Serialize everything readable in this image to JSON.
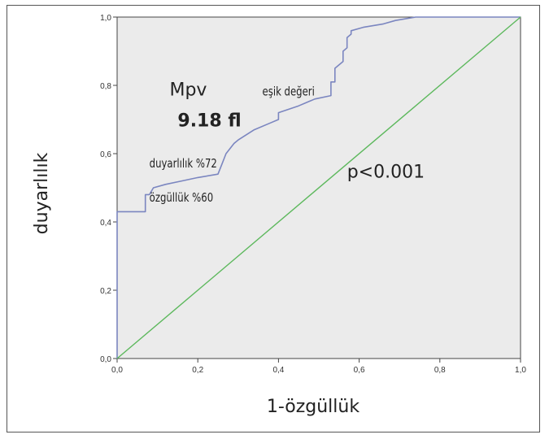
{
  "chart_data": {
    "type": "line",
    "xlabel": "1-özgüllük",
    "ylabel": "duyarlılık",
    "xlim": [
      0,
      1
    ],
    "ylim": [
      0,
      1
    ],
    "x_ticks": [
      "0,0",
      "0,2",
      "0,4",
      "0,6",
      "0,8",
      "1,0"
    ],
    "y_ticks": [
      "0,0",
      "0,2",
      "0,4",
      "0,6",
      "0,8",
      "1,0"
    ],
    "plot_background": "#ebebeb",
    "grid": false,
    "series": [
      {
        "color": "#7b86c0",
        "x": [
          0.0,
          0.0,
          0.07,
          0.07,
          0.08,
          0.09,
          0.12,
          0.16,
          0.2,
          0.25,
          0.26,
          0.27,
          0.29,
          0.3,
          0.34,
          0.38,
          0.4,
          0.4,
          0.45,
          0.49,
          0.53,
          0.53,
          0.54,
          0.54,
          0.56,
          0.56,
          0.57,
          0.57,
          0.58,
          0.58,
          0.61,
          0.61,
          0.66,
          0.66,
          0.69,
          0.69,
          0.74,
          0.8,
          1.0
        ],
        "y": [
          0.0,
          0.43,
          0.43,
          0.48,
          0.48,
          0.5,
          0.51,
          0.52,
          0.53,
          0.54,
          0.57,
          0.6,
          0.63,
          0.64,
          0.67,
          0.69,
          0.7,
          0.72,
          0.74,
          0.76,
          0.77,
          0.81,
          0.81,
          0.85,
          0.87,
          0.9,
          0.91,
          0.94,
          0.95,
          0.96,
          0.97,
          0.97,
          0.98,
          0.98,
          0.99,
          0.99,
          1.0,
          1.0,
          1.0
        ]
      },
      {
        "color": "#5cb85c",
        "x": [
          0,
          1
        ],
        "y": [
          0,
          1
        ]
      }
    ],
    "annotations": [
      {
        "text": "Mpv",
        "x": 0.13,
        "y": 0.77
      },
      {
        "text": "eşik değeri",
        "x": 0.36,
        "y": 0.77
      },
      {
        "text": "9.18 fl",
        "x": 0.15,
        "y": 0.68
      },
      {
        "text": "duyarlılık %72",
        "x": 0.08,
        "y": 0.56
      },
      {
        "text": "p<0.001",
        "x": 0.57,
        "y": 0.53
      },
      {
        "text": "özgüllük  %60",
        "x": 0.08,
        "y": 0.46
      }
    ]
  }
}
